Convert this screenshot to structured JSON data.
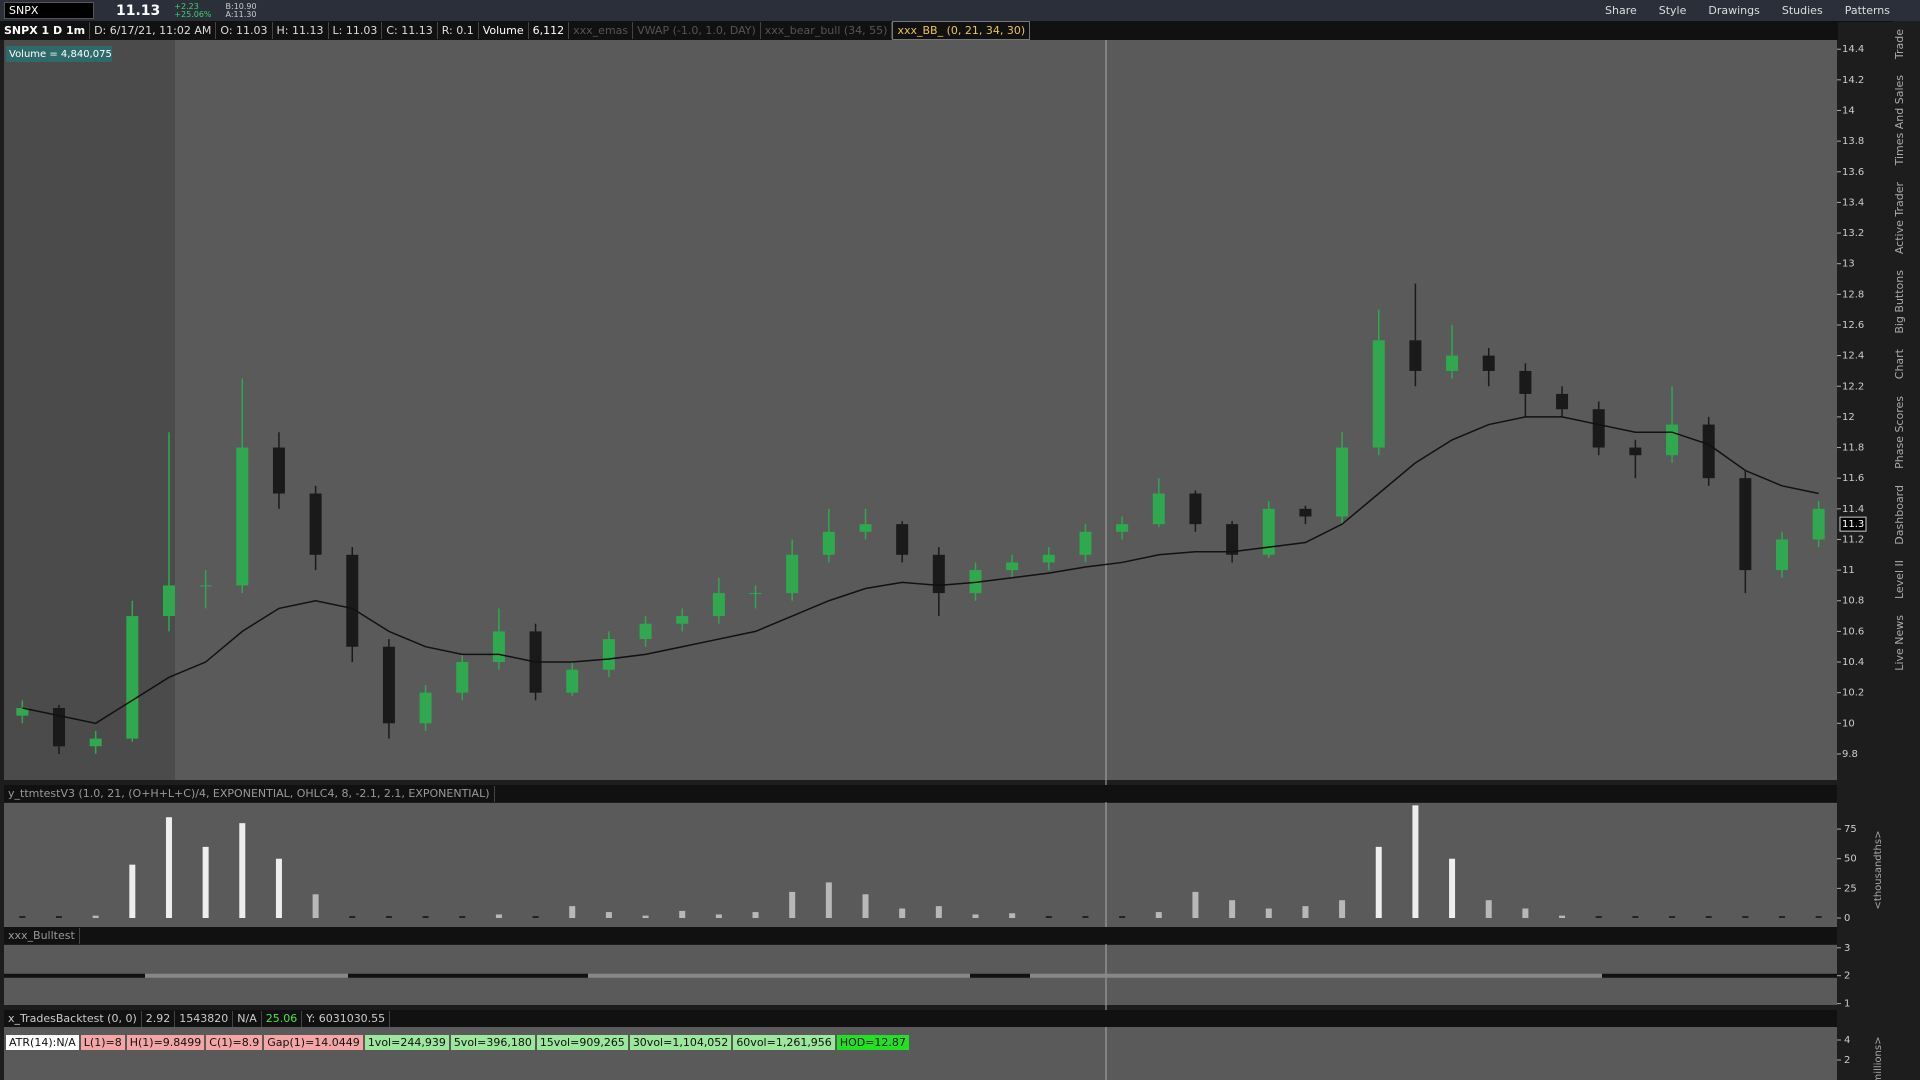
{
  "toolbar": {
    "symbol": "SNPX",
    "last": "11.13",
    "change": "+2.23",
    "change_pct": "+25.06%",
    "bid": "B:10.90",
    "ask": "A:11.30",
    "buttons": [
      "Share",
      "Style",
      "Drawings",
      "Studies",
      "Patterns"
    ]
  },
  "info_bar": [
    "SNPX 1 D 1m",
    "D: 6/17/21, 11:02 AM",
    "O: 11.03",
    "H: 11.13",
    "L: 11.03",
    "C: 11.13",
    "R: 0.1",
    "Volume",
    "6,112",
    "xxx_emas",
    "VWAP (-1.0, 1.0, DAY)",
    "xxx_bear_bull (34, 55)",
    "xxx_BB_ (0, 21, 34, 30)"
  ],
  "price_chart": {
    "volume_label": "Volume = 4,840,075",
    "price_marker": 11.3,
    "ylim": [
      9.63,
      14.46
    ],
    "yticks": [
      14.4,
      14.2,
      14,
      13.8,
      13.6,
      13.4,
      13.2,
      13,
      12.8,
      12.6,
      12.4,
      12.2,
      12,
      11.8,
      11.6,
      11.4,
      11.2,
      11,
      10.8,
      10.6,
      10.4,
      10.2,
      10,
      9.8
    ],
    "candles": [
      [
        10.05,
        10.15,
        10.0,
        10.1
      ],
      [
        10.1,
        10.12,
        9.8,
        9.85
      ],
      [
        9.85,
        9.95,
        9.8,
        9.9
      ],
      [
        9.9,
        10.8,
        9.88,
        10.7
      ],
      [
        10.7,
        11.9,
        10.6,
        10.9
      ],
      [
        10.9,
        11.0,
        10.75,
        10.9
      ],
      [
        10.9,
        12.25,
        10.85,
        11.8
      ],
      [
        11.8,
        11.9,
        11.4,
        11.5
      ],
      [
        11.5,
        11.55,
        11.0,
        11.1
      ],
      [
        11.1,
        11.15,
        10.4,
        10.5
      ],
      [
        10.5,
        10.55,
        9.9,
        10.0
      ],
      [
        10.0,
        10.25,
        9.95,
        10.2
      ],
      [
        10.2,
        10.45,
        10.15,
        10.4
      ],
      [
        10.4,
        10.75,
        10.35,
        10.6
      ],
      [
        10.6,
        10.65,
        10.15,
        10.2
      ],
      [
        10.2,
        10.4,
        10.18,
        10.35
      ],
      [
        10.35,
        10.6,
        10.3,
        10.55
      ],
      [
        10.55,
        10.7,
        10.5,
        10.65
      ],
      [
        10.65,
        10.75,
        10.6,
        10.7
      ],
      [
        10.7,
        10.95,
        10.65,
        10.85
      ],
      [
        10.85,
        10.9,
        10.75,
        10.85
      ],
      [
        10.85,
        11.2,
        10.8,
        11.1
      ],
      [
        11.1,
        11.4,
        11.05,
        11.25
      ],
      [
        11.25,
        11.4,
        11.2,
        11.3
      ],
      [
        11.3,
        11.32,
        11.05,
        11.1
      ],
      [
        11.1,
        11.15,
        10.7,
        10.85
      ],
      [
        10.85,
        11.05,
        10.8,
        11.0
      ],
      [
        11.0,
        11.1,
        10.95,
        11.05
      ],
      [
        11.05,
        11.15,
        11.0,
        11.1
      ],
      [
        11.1,
        11.3,
        11.05,
        11.25
      ],
      [
        11.25,
        11.35,
        11.2,
        11.3
      ],
      [
        11.3,
        11.6,
        11.28,
        11.5
      ],
      [
        11.5,
        11.52,
        11.25,
        11.3
      ],
      [
        11.3,
        11.32,
        11.05,
        11.1
      ],
      [
        11.1,
        11.45,
        11.08,
        11.4
      ],
      [
        11.4,
        11.42,
        11.3,
        11.35
      ],
      [
        11.35,
        11.9,
        11.3,
        11.8
      ],
      [
        11.8,
        12.7,
        11.75,
        12.5
      ],
      [
        12.5,
        12.87,
        12.2,
        12.3
      ],
      [
        12.3,
        12.6,
        12.25,
        12.4
      ],
      [
        12.4,
        12.45,
        12.2,
        12.3
      ],
      [
        12.3,
        12.35,
        12.0,
        12.15
      ],
      [
        12.15,
        12.2,
        12.0,
        12.05
      ],
      [
        12.05,
        12.1,
        11.75,
        11.8
      ],
      [
        11.8,
        11.85,
        11.6,
        11.75
      ],
      [
        11.75,
        12.2,
        11.7,
        11.95
      ],
      [
        11.95,
        12.0,
        11.55,
        11.6
      ],
      [
        11.6,
        11.65,
        10.85,
        11.0
      ],
      [
        11.0,
        11.25,
        10.95,
        11.2
      ],
      [
        11.2,
        11.45,
        11.15,
        11.4
      ]
    ],
    "ema": [
      10.1,
      10.05,
      10.0,
      10.15,
      10.3,
      10.4,
      10.6,
      10.75,
      10.8,
      10.75,
      10.6,
      10.5,
      10.45,
      10.45,
      10.4,
      10.4,
      10.42,
      10.45,
      10.5,
      10.55,
      10.6,
      10.7,
      10.8,
      10.88,
      10.92,
      10.9,
      10.92,
      10.95,
      10.98,
      11.02,
      11.05,
      11.1,
      11.12,
      11.12,
      11.15,
      11.18,
      11.3,
      11.5,
      11.7,
      11.85,
      11.95,
      12.0,
      12.0,
      11.95,
      11.9,
      11.9,
      11.82,
      11.65,
      11.55,
      11.5
    ]
  },
  "oscillator": {
    "title": "y_ttmtestV3 (1.0, 21, (O+H+L+C)/4, EXPONENTIAL, OHLC4, 8, -2.1, 2.1, EXPONENTIAL)",
    "unit_label": "<thousandths>",
    "ylim": [
      0,
      97
    ],
    "yticks": [
      0,
      25,
      50,
      75
    ],
    "values": [
      0,
      0,
      2,
      45,
      85,
      60,
      80,
      50,
      20,
      0,
      0,
      0,
      0,
      3,
      0,
      10,
      5,
      2,
      6,
      3,
      5,
      22,
      30,
      20,
      8,
      10,
      3,
      4,
      0,
      0,
      0,
      5,
      22,
      15,
      8,
      10,
      15,
      60,
      95,
      50,
      15,
      8,
      2,
      0,
      0,
      0,
      0,
      0,
      0,
      0
    ]
  },
  "bulltest": {
    "title": "xxx_Bulltest",
    "ylim": [
      0.95,
      3.1
    ],
    "yticks": [
      1,
      2,
      3
    ]
  },
  "backtest": [
    "x_TradesBacktest (0, 0)",
    "2.92",
    "1543820",
    "N/A",
    "25.06",
    "Y: 6031030.55"
  ],
  "stats": [
    "ATR(14):N/A",
    "L(1)=8",
    "H(1)=9.8499",
    "C(1)=8.9",
    "Gap(1)=14.0449",
    "1vol=244,939",
    "5vol=396,180",
    "15vol=909,265",
    "30vol=1,104,052",
    "60vol=1,261,956",
    "HOD=12.87"
  ],
  "bottom_axis": {
    "unit_label": "millions>",
    "yticks": [
      2,
      4
    ],
    "ylim": [
      0,
      5.3
    ]
  },
  "side_tabs": [
    "Trade",
    "Times And Sales",
    "Active Trader",
    "Big Buttons",
    "Chart",
    "Phase Scores",
    "Dashboard",
    "Level II",
    "Live News"
  ]
}
